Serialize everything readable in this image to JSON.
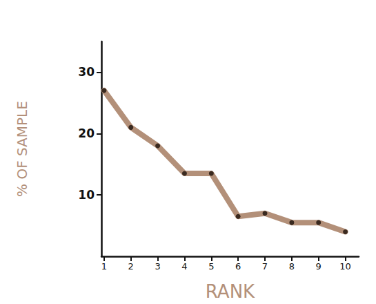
{
  "chart_data": {
    "type": "line",
    "x": [
      1,
      2,
      3,
      4,
      5,
      6,
      7,
      8,
      9,
      10
    ],
    "values": [
      27,
      21,
      18,
      13.5,
      13.5,
      6.5,
      7,
      5.5,
      5.5,
      4
    ],
    "xlabel": "RANK",
    "ylabel": "% OF SAMPLE",
    "xlim": [
      0.9,
      10.5
    ],
    "xticks": [
      1,
      2,
      3,
      4,
      5,
      6,
      7,
      8,
      9,
      10
    ],
    "ylim": [
      0,
      35
    ],
    "yticks": [
      10,
      20,
      30
    ],
    "color": "#b39079",
    "marker": "circle",
    "grid": false
  }
}
